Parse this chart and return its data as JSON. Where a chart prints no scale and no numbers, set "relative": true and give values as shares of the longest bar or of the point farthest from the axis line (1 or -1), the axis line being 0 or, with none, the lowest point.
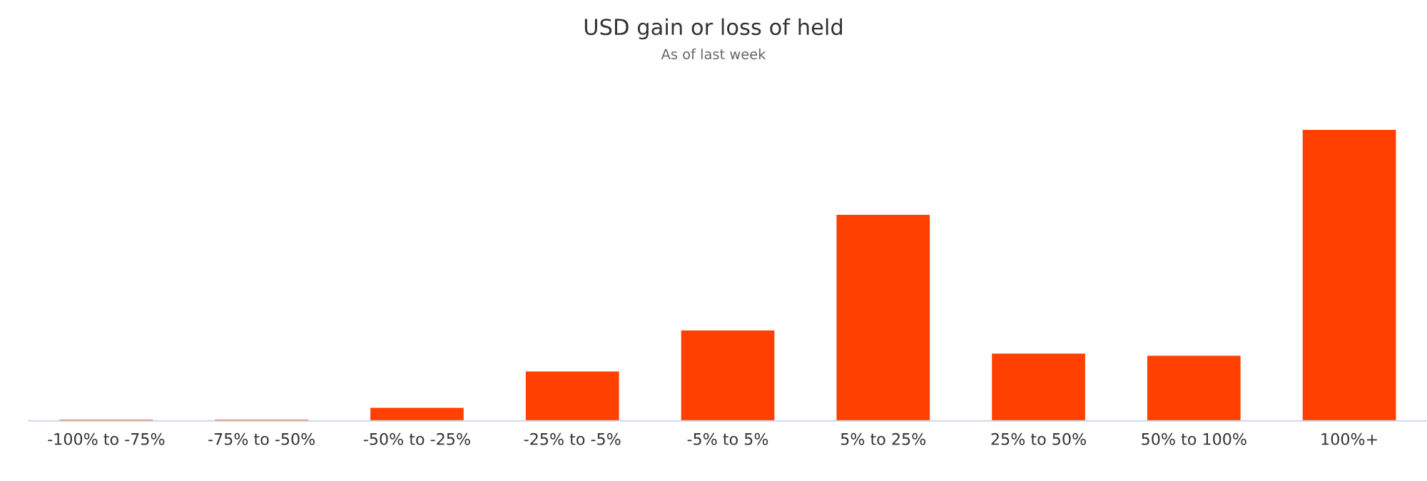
{
  "chart_data": {
    "type": "bar",
    "title": "USD gain or loss of held",
    "subtitle": "As of last week",
    "relative": true,
    "categories": [
      "-100% to -75%",
      "-75% to -50%",
      "-50% to -25%",
      "-25% to -5%",
      "-5% to 5%",
      "5% to 25%",
      "25% to 50%",
      "50% to 100%",
      "100%+"
    ],
    "values": [
      0.004,
      0.004,
      0.045,
      0.17,
      0.311,
      0.708,
      0.231,
      0.224,
      1
    ],
    "color": "#ff4000",
    "legend": false
  }
}
